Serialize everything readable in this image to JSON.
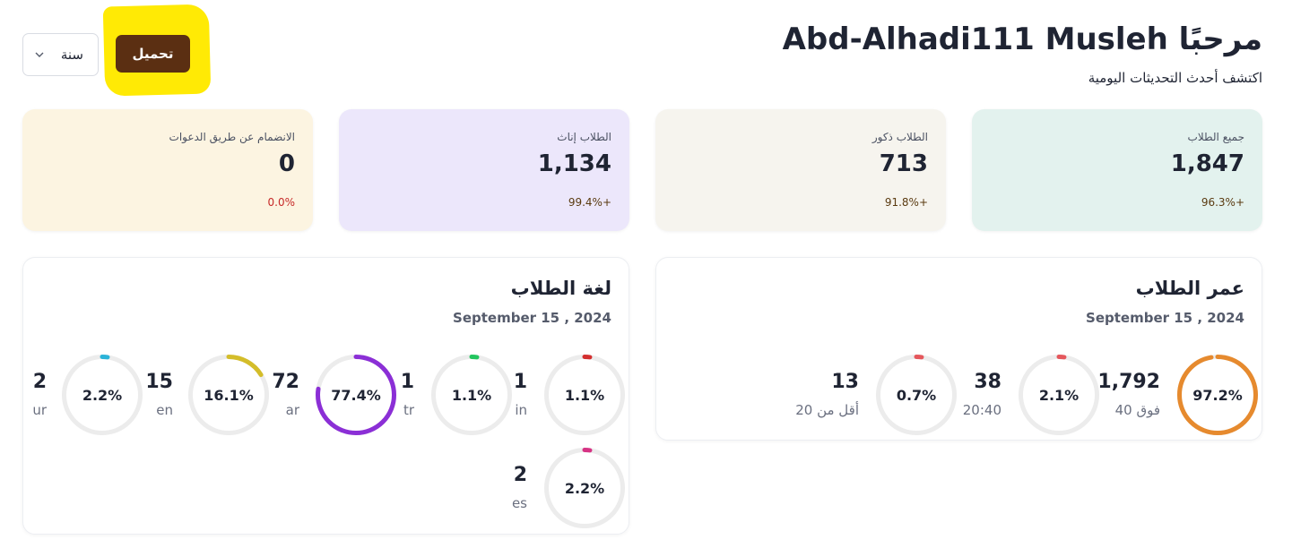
{
  "header": {
    "title": "مرحبًا Abd-Alhadi111 Musleh",
    "subtitle": "اكتشف أحدث التحديثات اليومية",
    "download_label": "تحميل",
    "period_label": "سنة"
  },
  "stats": [
    {
      "label": "جميع الطلاب",
      "value": "1,847",
      "change": "+96.3%",
      "change_color": "#5a3a10"
    },
    {
      "label": "الطلاب ذكور",
      "value": "713",
      "change": "+91.8%",
      "change_color": "#5a3a10"
    },
    {
      "label": "الطلاب إناث",
      "value": "1,134",
      "change": "+99.4%",
      "change_color": "#5a3a10"
    },
    {
      "label": "الانضمام عن طريق الدعوات",
      "value": "0",
      "change": "0.0%",
      "change_color": "#c62828"
    }
  ],
  "age_panel": {
    "title": "عمر الطلاب",
    "date": "September 15 , 2024",
    "items": [
      {
        "category": "فوق 40",
        "count": "1,792",
        "percent": "97.2%",
        "fraction": 0.972,
        "color": "#e68a2e"
      },
      {
        "category": "20:40",
        "count": "38",
        "percent": "2.1%",
        "fraction": 0.021,
        "color": "#e5575c"
      },
      {
        "category": "أقل من 20",
        "count": "13",
        "percent": "0.7%",
        "fraction": 0.007,
        "color": "#e5575c"
      }
    ]
  },
  "lang_panel": {
    "title": "لغة الطلاب",
    "date": "September 15 , 2024",
    "items": [
      {
        "category": "in",
        "count": "1",
        "percent": "1.1%",
        "fraction": 0.011,
        "color": "#d32f2f"
      },
      {
        "category": "tr",
        "count": "1",
        "percent": "1.1%",
        "fraction": 0.011,
        "color": "#22c55e"
      },
      {
        "category": "ar",
        "count": "72",
        "percent": "77.4%",
        "fraction": 0.774,
        "color": "#8b2fd6"
      },
      {
        "category": "en",
        "count": "15",
        "percent": "16.1%",
        "fraction": 0.161,
        "color": "#d4bd2a"
      },
      {
        "category": "ur",
        "count": "2",
        "percent": "2.2%",
        "fraction": 0.022,
        "color": "#2bb3d8"
      },
      {
        "category": "es",
        "count": "2",
        "percent": "2.2%",
        "fraction": 0.022,
        "color": "#d63384"
      }
    ]
  },
  "colors": {
    "accent": "#5b2f12",
    "highlight": "#ffea05",
    "track": "#ececec"
  }
}
